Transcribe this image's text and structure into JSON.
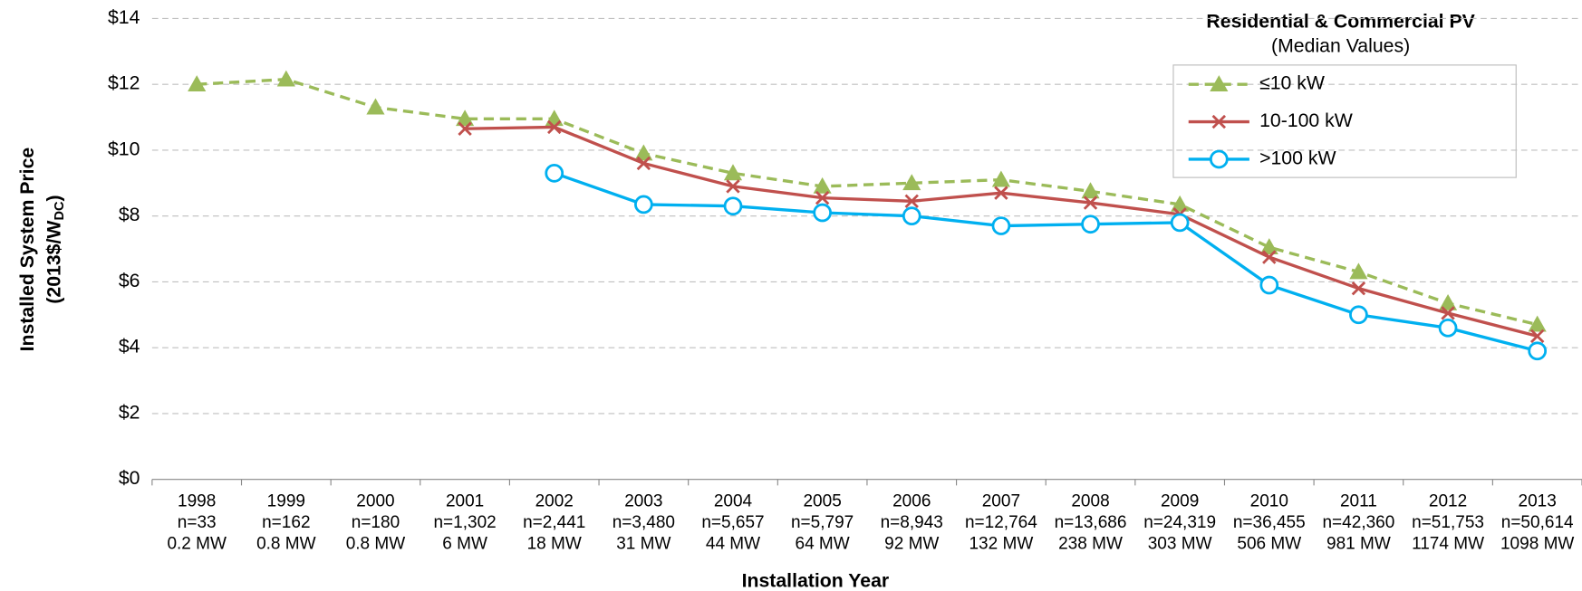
{
  "chart_data": {
    "type": "line",
    "legend_title": "Residential & Commercial PV",
    "legend_subtitle": "(Median Values)",
    "x_label": "Installation Year",
    "y_label": "Installed System Price",
    "y_label_unit": "(2013$/W",
    "y_label_unit_sub": "DC",
    "y_label_unit_end": ")",
    "categories": [
      "1998",
      "1999",
      "2000",
      "2001",
      "2002",
      "2003",
      "2004",
      "2005",
      "2006",
      "2007",
      "2008",
      "2009",
      "2010",
      "2011",
      "2012",
      "2013"
    ],
    "sample_sizes": [
      "n=33",
      "n=162",
      "n=180",
      "n=1,302",
      "n=2,441",
      "n=3,480",
      "n=5,657",
      "n=5,797",
      "n=8,943",
      "n=12,764",
      "n=13,686",
      "n=24,319",
      "n=36,455",
      "n=42,360",
      "n=51,753",
      "n=50,614"
    ],
    "capacities": [
      "0.2 MW",
      "0.8 MW",
      "0.8 MW",
      "6 MW",
      "18 MW",
      "31 MW",
      "44 MW",
      "64 MW",
      "92 MW",
      "132 MW",
      "238 MW",
      "303 MW",
      "506 MW",
      "981 MW",
      "1174 MW",
      "1098 MW"
    ],
    "series": [
      {
        "name": "≤10 kW",
        "color": "#9bbb59",
        "marker": "triangle",
        "dashed": true,
        "values": [
          12.0,
          12.15,
          11.3,
          10.95,
          10.95,
          9.9,
          9.3,
          8.9,
          9.0,
          9.1,
          8.75,
          8.35,
          7.05,
          6.3,
          5.35,
          4.7
        ]
      },
      {
        "name": "10-100 kW",
        "color": "#c0504d",
        "marker": "x",
        "dashed": false,
        "values": [
          null,
          null,
          null,
          10.65,
          10.7,
          9.6,
          8.9,
          8.55,
          8.45,
          8.7,
          8.4,
          8.05,
          6.75,
          5.8,
          5.05,
          4.35
        ]
      },
      {
        "name": ">100 kW",
        "color": "#00b0f0",
        "marker": "circle",
        "dashed": false,
        "values": [
          null,
          null,
          null,
          null,
          9.3,
          8.35,
          8.3,
          8.1,
          8.0,
          7.7,
          7.75,
          7.8,
          5.9,
          5.0,
          4.6,
          3.9
        ]
      }
    ],
    "ylim": [
      0,
      14
    ],
    "yticks": [
      {
        "value": 0,
        "label": "$0"
      },
      {
        "value": 2,
        "label": "$2"
      },
      {
        "value": 4,
        "label": "$4"
      },
      {
        "value": 6,
        "label": "$6"
      },
      {
        "value": 8,
        "label": "$8"
      },
      {
        "value": 10,
        "label": "$10"
      },
      {
        "value": 12,
        "label": "$12"
      },
      {
        "value": 14,
        "label": "$14"
      }
    ],
    "grid": true,
    "legend_position": "upper right"
  }
}
